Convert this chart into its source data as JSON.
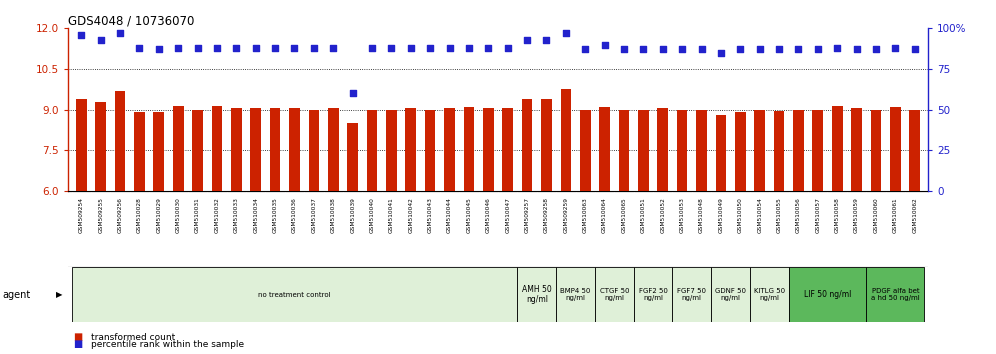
{
  "title": "GDS4048 / 10736070",
  "samples": [
    "GSM509254",
    "GSM509255",
    "GSM509256",
    "GSM510028",
    "GSM510029",
    "GSM510030",
    "GSM510031",
    "GSM510032",
    "GSM510033",
    "GSM510034",
    "GSM510035",
    "GSM510036",
    "GSM510037",
    "GSM510038",
    "GSM510039",
    "GSM510040",
    "GSM510041",
    "GSM510042",
    "GSM510043",
    "GSM510044",
    "GSM510045",
    "GSM510046",
    "GSM510047",
    "GSM509257",
    "GSM509258",
    "GSM509259",
    "GSM510063",
    "GSM510064",
    "GSM510065",
    "GSM510051",
    "GSM510052",
    "GSM510053",
    "GSM510048",
    "GSM510049",
    "GSM510050",
    "GSM510054",
    "GSM510055",
    "GSM510056",
    "GSM510057",
    "GSM510058",
    "GSM510059",
    "GSM510060",
    "GSM510061",
    "GSM510062"
  ],
  "bar_values": [
    9.4,
    9.3,
    9.7,
    8.9,
    8.9,
    9.15,
    9.0,
    9.15,
    9.05,
    9.05,
    9.05,
    9.05,
    9.0,
    9.05,
    8.5,
    9.0,
    9.0,
    9.05,
    9.0,
    9.05,
    9.1,
    9.05,
    9.05,
    9.4,
    9.4,
    9.75,
    9.0,
    9.1,
    9.0,
    9.0,
    9.05,
    9.0,
    9.0,
    8.8,
    8.9,
    9.0,
    8.95,
    9.0,
    9.0,
    9.15,
    9.05,
    9.0,
    9.1,
    9.0
  ],
  "percentile_values": [
    96,
    93,
    97,
    88,
    87,
    88,
    88,
    88,
    88,
    88,
    88,
    88,
    88,
    88,
    60,
    88,
    88,
    88,
    88,
    88,
    88,
    88,
    88,
    93,
    93,
    97,
    87,
    90,
    87,
    87,
    87,
    87,
    87,
    85,
    87,
    87,
    87,
    87,
    87,
    88,
    87,
    87,
    88,
    87
  ],
  "agent_groups": [
    {
      "label": "no treatment control",
      "start": 0,
      "end": 23,
      "color": "#dff0d8",
      "strong_green": false
    },
    {
      "label": "AMH 50\nng/ml",
      "start": 23,
      "end": 25,
      "color": "#dff0d8",
      "strong_green": false
    },
    {
      "label": "BMP4 50\nng/ml",
      "start": 25,
      "end": 27,
      "color": "#dff0d8",
      "strong_green": false
    },
    {
      "label": "CTGF 50\nng/ml",
      "start": 27,
      "end": 29,
      "color": "#dff0d8",
      "strong_green": false
    },
    {
      "label": "FGF2 50\nng/ml",
      "start": 29,
      "end": 31,
      "color": "#dff0d8",
      "strong_green": false
    },
    {
      "label": "FGF7 50\nng/ml",
      "start": 31,
      "end": 33,
      "color": "#dff0d8",
      "strong_green": false
    },
    {
      "label": "GDNF 50\nng/ml",
      "start": 33,
      "end": 35,
      "color": "#dff0d8",
      "strong_green": false
    },
    {
      "label": "KITLG 50\nng/ml",
      "start": 35,
      "end": 37,
      "color": "#dff0d8",
      "strong_green": false
    },
    {
      "label": "LIF 50 ng/ml",
      "start": 37,
      "end": 41,
      "color": "#5cb85c",
      "strong_green": true
    },
    {
      "label": "PDGF alfa bet\na hd 50 ng/ml",
      "start": 41,
      "end": 44,
      "color": "#5cb85c",
      "strong_green": true
    }
  ],
  "ylim_left": [
    6,
    12
  ],
  "ylim_right": [
    0,
    100
  ],
  "yticks_left": [
    6,
    7.5,
    9,
    10.5,
    12
  ],
  "yticks_right": [
    0,
    25,
    50,
    75,
    100
  ],
  "bar_color": "#cc2200",
  "dot_color": "#2222cc",
  "grid_values": [
    7.5,
    9.0,
    10.5
  ],
  "bar_width": 0.55,
  "dot_size": 18,
  "dot_marker": "s",
  "xtick_bg_color": "#cccccc",
  "agent_label": "agent"
}
